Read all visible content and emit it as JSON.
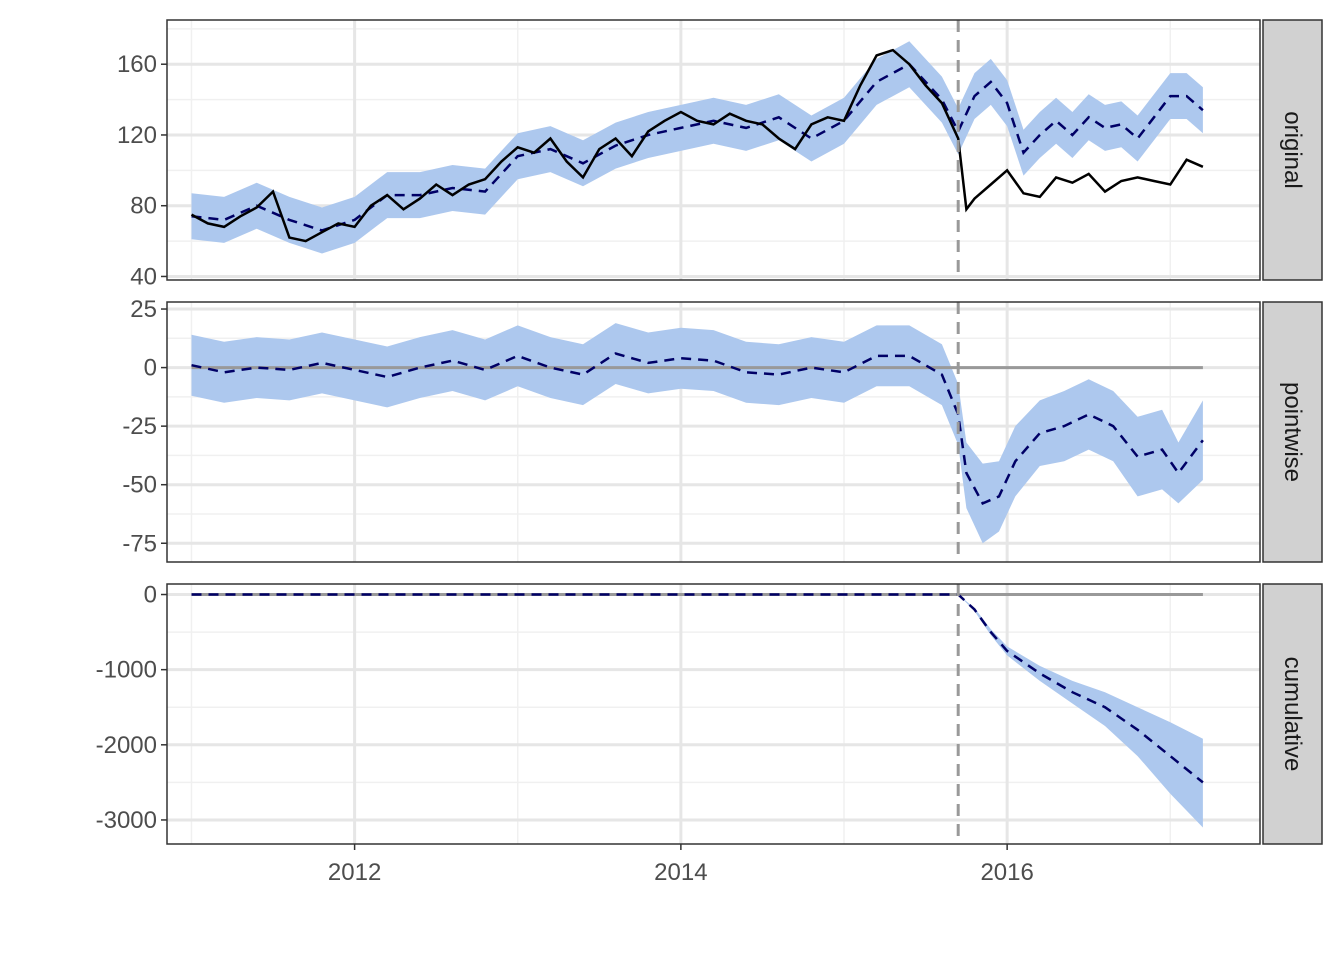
{
  "chart_data": {
    "type": "line",
    "title": "",
    "xlabel": "",
    "ylabel": "",
    "xlim": [
      2010.85,
      2017.55
    ],
    "x_ticks": [
      {
        "value": 2012,
        "label": "2012"
      },
      {
        "value": 2014,
        "label": "2014"
      },
      {
        "value": 2016,
        "label": "2016"
      }
    ],
    "intervention_x": 2015.7,
    "grid": true,
    "colors": {
      "band": "#adc8ee",
      "prediction": "#000066",
      "observed": "#000000",
      "reference": "#999999",
      "strip": "#d1d1d1"
    },
    "panels": [
      {
        "label": "original",
        "ylim": [
          38,
          185
        ],
        "y_ticks": [
          {
            "value": 40,
            "label": "40"
          },
          {
            "value": 80,
            "label": "80"
          },
          {
            "value": 120,
            "label": "120"
          },
          {
            "value": 160,
            "label": "160"
          }
        ],
        "reference_y": null,
        "observed": {
          "x": [
            2011.0,
            2011.1,
            2011.2,
            2011.3,
            2011.4,
            2011.5,
            2011.6,
            2011.7,
            2011.8,
            2011.9,
            2012.0,
            2012.1,
            2012.2,
            2012.3,
            2012.4,
            2012.5,
            2012.6,
            2012.7,
            2012.8,
            2012.9,
            2013.0,
            2013.1,
            2013.2,
            2013.3,
            2013.4,
            2013.5,
            2013.6,
            2013.7,
            2013.8,
            2013.9,
            2014.0,
            2014.1,
            2014.2,
            2014.3,
            2014.4,
            2014.5,
            2014.6,
            2014.7,
            2014.8,
            2014.9,
            2015.0,
            2015.1,
            2015.2,
            2015.3,
            2015.4,
            2015.5,
            2015.6,
            2015.7,
            2015.75,
            2015.8,
            2015.9,
            2016.0,
            2016.1,
            2016.2,
            2016.3,
            2016.4,
            2016.5,
            2016.6,
            2016.7,
            2016.8,
            2016.9,
            2017.0,
            2017.1,
            2017.2
          ],
          "y": [
            75,
            70,
            68,
            74,
            79,
            88,
            62,
            60,
            65,
            70,
            68,
            80,
            86,
            78,
            84,
            92,
            86,
            92,
            95,
            105,
            113,
            110,
            118,
            105,
            96,
            112,
            118,
            108,
            122,
            128,
            133,
            128,
            126,
            132,
            128,
            126,
            118,
            112,
            126,
            130,
            128,
            148,
            165,
            168,
            160,
            148,
            138,
            118,
            78,
            84,
            92,
            100,
            87,
            85,
            96,
            93,
            98,
            88,
            94,
            96,
            94,
            92,
            106,
            102
          ]
        },
        "predicted": {
          "x": [
            2011.0,
            2011.2,
            2011.4,
            2011.6,
            2011.8,
            2012.0,
            2012.2,
            2012.4,
            2012.6,
            2012.8,
            2013.0,
            2013.2,
            2013.4,
            2013.6,
            2013.8,
            2014.0,
            2014.2,
            2014.4,
            2014.6,
            2014.8,
            2015.0,
            2015.2,
            2015.4,
            2015.6,
            2015.7,
            2015.8,
            2015.9,
            2016.0,
            2016.1,
            2016.2,
            2016.3,
            2016.4,
            2016.5,
            2016.6,
            2016.7,
            2016.8,
            2016.9,
            2017.0,
            2017.1,
            2017.2
          ],
          "y": [
            74,
            72,
            80,
            72,
            66,
            72,
            86,
            86,
            90,
            88,
            108,
            112,
            104,
            114,
            120,
            124,
            128,
            124,
            130,
            118,
            128,
            150,
            160,
            140,
            122,
            142,
            150,
            138,
            110,
            120,
            128,
            120,
            130,
            124,
            126,
            118,
            130,
            142,
            142,
            134
          ],
          "lower": [
            61,
            59,
            67,
            59,
            53,
            59,
            73,
            73,
            77,
            75,
            95,
            99,
            91,
            101,
            107,
            111,
            115,
            111,
            117,
            105,
            115,
            137,
            147,
            127,
            109,
            129,
            137,
            125,
            97,
            107,
            115,
            107,
            117,
            111,
            113,
            105,
            117,
            129,
            129,
            121
          ],
          "upper": [
            87,
            85,
            93,
            85,
            79,
            85,
            99,
            99,
            103,
            101,
            121,
            125,
            117,
            127,
            133,
            137,
            141,
            137,
            143,
            131,
            141,
            163,
            173,
            153,
            135,
            155,
            163,
            151,
            123,
            133,
            141,
            133,
            143,
            137,
            139,
            131,
            143,
            155,
            155,
            147
          ]
        }
      },
      {
        "label": "pointwise",
        "ylim": [
          -83,
          28
        ],
        "y_ticks": [
          {
            "value": 25,
            "label": "25"
          },
          {
            "value": 0,
            "label": "0"
          },
          {
            "value": -25,
            "label": "-25"
          },
          {
            "value": -50,
            "label": "-50"
          },
          {
            "value": -75,
            "label": "-75"
          }
        ],
        "reference_y": 0,
        "observed": null,
        "predicted": {
          "x": [
            2011.0,
            2011.2,
            2011.4,
            2011.6,
            2011.8,
            2012.0,
            2012.2,
            2012.4,
            2012.6,
            2012.8,
            2013.0,
            2013.2,
            2013.4,
            2013.6,
            2013.8,
            2014.0,
            2014.2,
            2014.4,
            2014.6,
            2014.8,
            2015.0,
            2015.2,
            2015.4,
            2015.6,
            2015.7,
            2015.75,
            2015.85,
            2015.95,
            2016.05,
            2016.2,
            2016.35,
            2016.5,
            2016.65,
            2016.8,
            2016.95,
            2017.05,
            2017.2
          ],
          "y": [
            1,
            -2,
            0,
            -1,
            2,
            -1,
            -4,
            0,
            3,
            -1,
            5,
            0,
            -3,
            6,
            2,
            4,
            3,
            -2,
            -3,
            0,
            -2,
            5,
            5,
            -3,
            -20,
            -45,
            -58,
            -55,
            -40,
            -28,
            -25,
            -20,
            -25,
            -38,
            -35,
            -45,
            -31
          ],
          "lower": [
            -12,
            -15,
            -13,
            -14,
            -11,
            -14,
            -17,
            -13,
            -10,
            -14,
            -8,
            -13,
            -16,
            -7,
            -11,
            -9,
            -10,
            -15,
            -16,
            -13,
            -15,
            -8,
            -8,
            -16,
            -33,
            -60,
            -75,
            -70,
            -55,
            -42,
            -40,
            -35,
            -40,
            -55,
            -52,
            -58,
            -48
          ],
          "upper": [
            14,
            11,
            13,
            12,
            15,
            12,
            9,
            13,
            16,
            12,
            18,
            13,
            10,
            19,
            15,
            17,
            16,
            11,
            10,
            13,
            11,
            18,
            18,
            10,
            -7,
            -32,
            -41,
            -40,
            -25,
            -14,
            -10,
            -5,
            -10,
            -21,
            -18,
            -32,
            -14
          ]
        }
      },
      {
        "label": "cumulative",
        "ylim": [
          -3320,
          140
        ],
        "y_ticks": [
          {
            "value": 0,
            "label": "0"
          },
          {
            "value": -1000,
            "label": "-1000"
          },
          {
            "value": -2000,
            "label": "-2000"
          },
          {
            "value": -3000,
            "label": "-3000"
          }
        ],
        "reference_y": 0,
        "observed": null,
        "predicted": {
          "x": [
            2011.0,
            2015.7,
            2015.8,
            2015.9,
            2016.0,
            2016.2,
            2016.4,
            2016.6,
            2016.8,
            2017.0,
            2017.2
          ],
          "y": [
            0,
            0,
            -200,
            -500,
            -750,
            -1050,
            -1300,
            -1500,
            -1800,
            -2150,
            -2500
          ],
          "lower": [
            0,
            0,
            -220,
            -540,
            -810,
            -1150,
            -1450,
            -1750,
            -2150,
            -2650,
            -3100
          ],
          "upper": [
            0,
            0,
            -180,
            -460,
            -690,
            -950,
            -1150,
            -1300,
            -1500,
            -1700,
            -1920
          ]
        }
      }
    ]
  }
}
